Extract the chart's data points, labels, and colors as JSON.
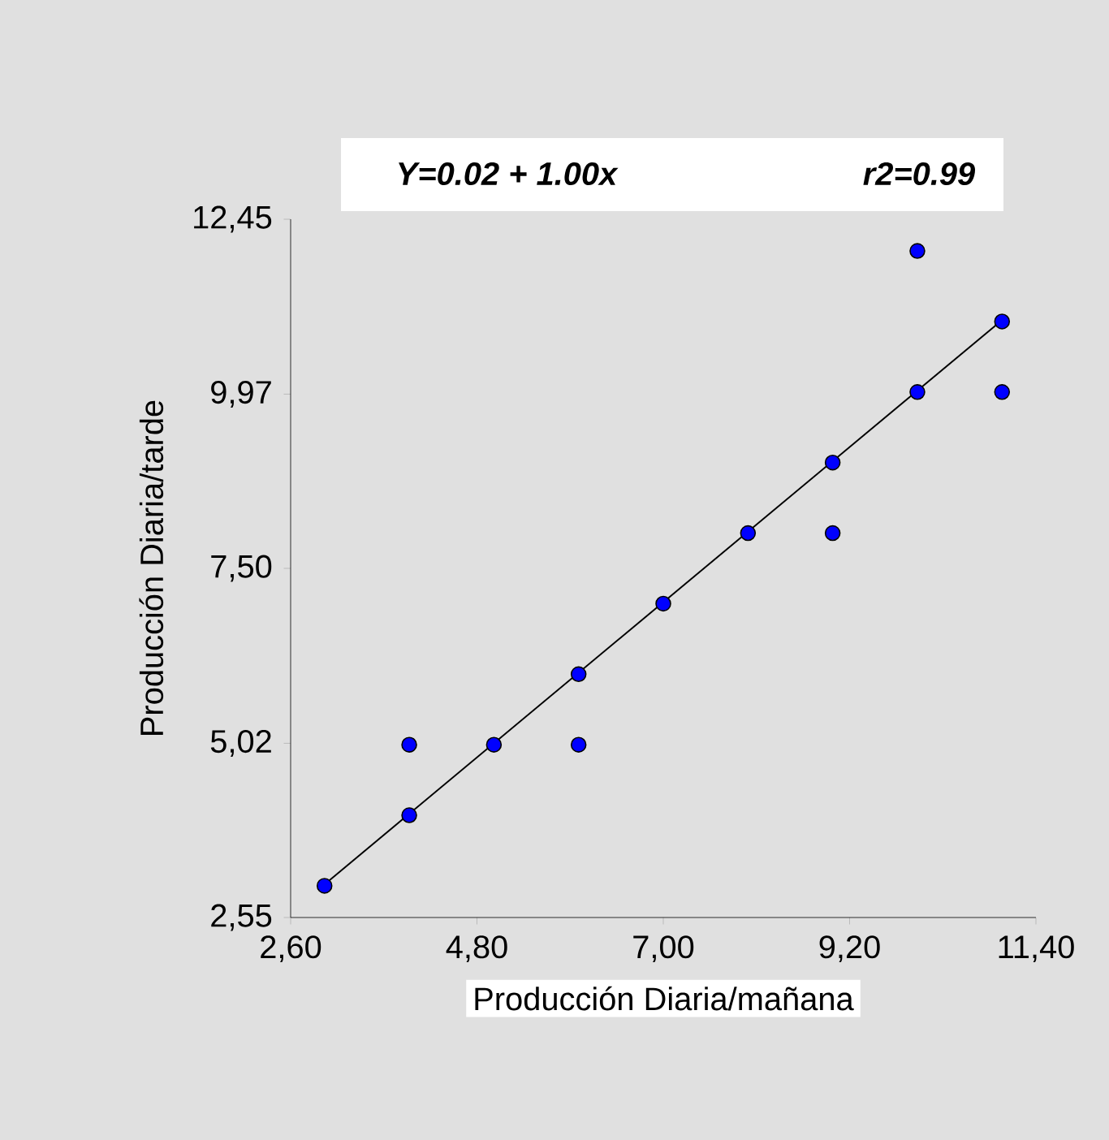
{
  "chart_data": {
    "type": "scatter",
    "xlabel": "Producción Diaria/mañana",
    "ylabel": "Producción Diaria/tarde",
    "annotations": [
      "Y=0.02 + 1.00x",
      "r2=0.99"
    ],
    "series": [
      {
        "color": "#0000ff",
        "marker": "circle",
        "x": [
          3,
          4,
          4,
          5,
          6,
          6,
          7,
          8,
          9,
          9,
          10,
          10,
          11,
          11
        ],
        "values": [
          3,
          4,
          5,
          5,
          6,
          5,
          7,
          8,
          9,
          8,
          10,
          12,
          11,
          10
        ]
      },
      {
        "type": "line",
        "color": "#000000",
        "marker": "none",
        "x": [
          3,
          11
        ],
        "values": [
          3.02,
          11.02
        ]
      }
    ],
    "xlim": [
      2.6,
      11.4
    ],
    "ylim": [
      2.55,
      12.45
    ],
    "xticks": [
      {
        "value": 2.6,
        "label": "2,60"
      },
      {
        "value": 4.8,
        "label": "4,80"
      },
      {
        "value": 7.0,
        "label": "7,00"
      },
      {
        "value": 9.2,
        "label": "9,20"
      },
      {
        "value": 11.4,
        "label": "11,40"
      }
    ],
    "yticks": [
      {
        "value": 2.55,
        "label": "2,55"
      },
      {
        "value": 5.02,
        "label": "5,02"
      },
      {
        "value": 7.5,
        "label": "7,50"
      },
      {
        "value": 9.97,
        "label": "9,97"
      },
      {
        "value": 12.45,
        "label": "12,45"
      }
    ],
    "grid": false
  }
}
